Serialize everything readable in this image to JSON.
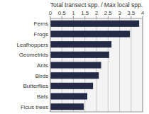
{
  "chart_data": {
    "type": "bar",
    "orientation": "horizontal",
    "title": "Total transect spp. / Max local spp.",
    "categories": [
      "Ferns",
      "Frogs",
      "Leafhoppers",
      "Geometrids",
      "Ants",
      "Birds",
      "Butterflies",
      "Bats",
      "Ficus trees"
    ],
    "values": [
      3.85,
      3.45,
      2.65,
      2.55,
      2.2,
      2.1,
      1.85,
      1.6,
      1.45
    ],
    "color": "#232b47",
    "xlim": [
      0,
      4
    ],
    "xticks": [
      0,
      0.5,
      1,
      1.5,
      2,
      2.5,
      3,
      3.5,
      4
    ],
    "grid": true
  }
}
